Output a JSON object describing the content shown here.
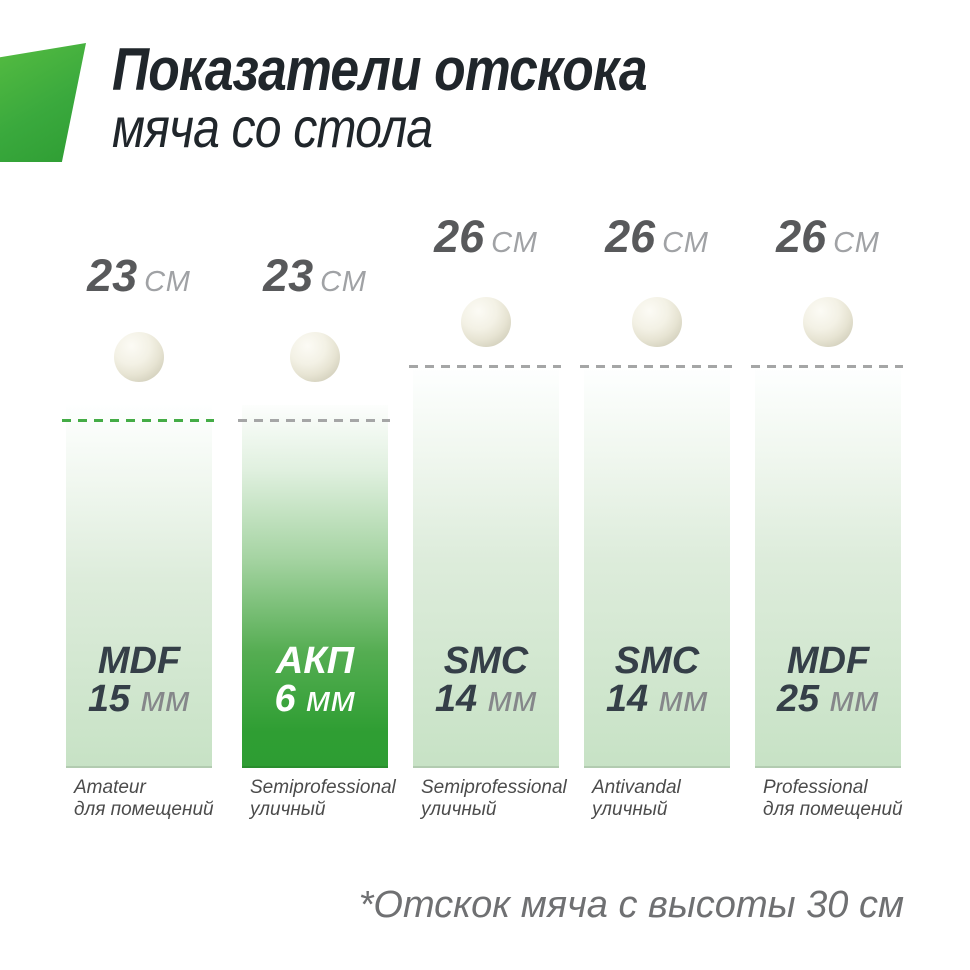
{
  "header": {
    "title_line1": "Показатели отскока",
    "title_line2": "мяча со стола"
  },
  "chart_data": {
    "type": "bar",
    "title": "Показатели отскока мяча со стола",
    "note": "*Отскок мяча с высоты 30 см",
    "unit": "см",
    "drop_height_cm": 30,
    "categories": [
      "MDF 15 мм",
      "АКП 6 мм",
      "SMC 14 мм",
      "SMC 14 мм",
      "MDF 25 мм"
    ],
    "values": [
      23,
      23,
      26,
      26,
      26
    ],
    "value_labels": [
      "23 СМ",
      "23 СМ",
      "26 СМ",
      "26 СМ",
      "26 СМ"
    ],
    "grades": [
      "Amateur для помещений",
      "Semiprofessional уличный",
      "Semiprofessional уличный",
      "Antivandal уличный",
      "Professional для помещений"
    ],
    "highlighted_index": 1,
    "grid": false,
    "legend_position": "none"
  },
  "bars": [
    {
      "value": "23",
      "unit": "СМ",
      "material": "MDF",
      "thickness": "15",
      "thickness_unit": "мм",
      "grade": "Amateur",
      "usage": "для помещений"
    },
    {
      "value": "23",
      "unit": "СМ",
      "material": "АКП",
      "thickness": "6",
      "thickness_unit": "мм",
      "grade": "Semiprofessional",
      "usage": "уличный"
    },
    {
      "value": "26",
      "unit": "СМ",
      "material": "SMC",
      "thickness": "14",
      "thickness_unit": "мм",
      "grade": "Semiprofessional",
      "usage": "уличный"
    },
    {
      "value": "26",
      "unit": "СМ",
      "material": "SMC",
      "thickness": "14",
      "thickness_unit": "мм",
      "grade": "Antivandal",
      "usage": "уличный"
    },
    {
      "value": "26",
      "unit": "СМ",
      "material": "MDF",
      "thickness": "25",
      "thickness_unit": "мм",
      "grade": "Professional",
      "usage": "для помещений"
    }
  ],
  "footer": {
    "note": "*Отскок мяча с высоты 30 см"
  },
  "colors": {
    "accent_green": "#2f9e33",
    "logo_green_light": "#55bc41",
    "bar_light_bottom": "#c7e2c5",
    "dash_green": "#44ac46",
    "dash_gray": "#a5a6a6",
    "title_text": "#20262b",
    "value_number": "#58595b",
    "value_unit": "#a0a2a5",
    "material_text": "#353f48",
    "material_unit": "#85878a",
    "caption_text": "#4b4b4b",
    "footer_text": "#6f7072",
    "ball": "#f3f1e5"
  }
}
